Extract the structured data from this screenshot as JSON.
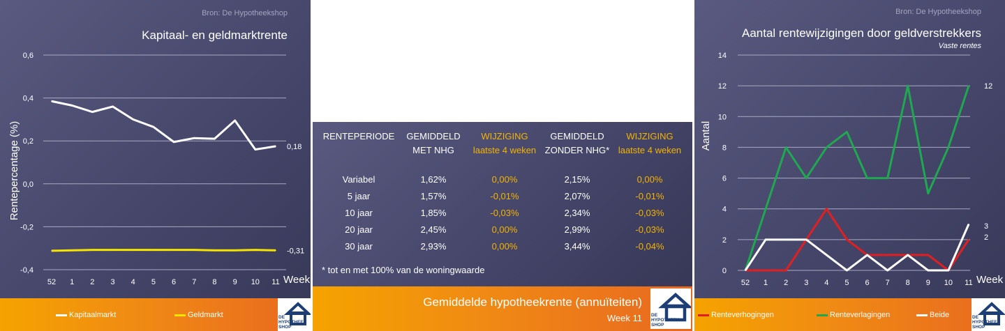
{
  "colors": {
    "panel_bg": "#45466a",
    "orange": "#f08a14",
    "yellow": "#f5e400",
    "white": "#ffffff",
    "red": "#e02020",
    "green": "#1fa84f",
    "highlight": "#f5b400"
  },
  "left_chart": {
    "source": "Bron: De Hypotheekshop",
    "legend": [
      "Kapitaalmarkt",
      "Geldmarkt"
    ]
  },
  "middle": {
    "headers": [
      {
        "line1": "RENTEPERIODE",
        "line2": "",
        "highlight": false
      },
      {
        "line1": "GEMIDDELD",
        "line2": "MET NHG",
        "highlight": false
      },
      {
        "line1": "WIJZIGING",
        "line2": "laatste 4 weken",
        "highlight": true
      },
      {
        "line1": "GEMIDDELD",
        "line2": "ZONDER NHG*",
        "highlight": false
      },
      {
        "line1": "WIJZIGING",
        "line2": "laatste 4 weken",
        "highlight": true
      }
    ],
    "rows": [
      [
        "Variabel",
        "1,62%",
        "0,00%",
        "2,15%",
        "0,00%"
      ],
      [
        "5 jaar",
        "1,57%",
        "-0,01%",
        "2,07%",
        "-0,01%"
      ],
      [
        "10 jaar",
        "1,85%",
        "-0,03%",
        "2,34%",
        "-0,03%"
      ],
      [
        "20 jaar",
        "2,45%",
        "0,00%",
        "2,99%",
        "-0,03%"
      ],
      [
        "30 jaar",
        "2,93%",
        "0,00%",
        "3,44%",
        "-0,04%"
      ]
    ],
    "footnote": "* tot en met 100% van de woningwaarde",
    "footer_title": "Gemiddelde hypotheekrente (annuïteiten)",
    "footer_week": "Week 11"
  },
  "right_chart": {
    "source": "Bron: De Hypotheekshop"
  },
  "logo": {
    "lines": [
      "DE",
      "HYPOTHEEK",
      "SHOP"
    ]
  },
  "chart_data": [
    {
      "type": "line",
      "title": "Kapitaal- en geldmarktrente",
      "xlabel": "Week",
      "ylabel": "Rentepercentage (%)",
      "categories": [
        "52",
        "1",
        "2",
        "3",
        "4",
        "5",
        "6",
        "7",
        "8",
        "9",
        "10",
        "11"
      ],
      "ylim": [
        -0.4,
        0.6
      ],
      "yticks": [
        "-0,4",
        "-0,2",
        "0,0",
        "0,2",
        "0,4",
        "0,6"
      ],
      "grid": true,
      "legend_position": "bottom",
      "series": [
        {
          "name": "Kapitaalmarkt",
          "color": "#ffffff",
          "values": [
            0.385,
            0.365,
            0.335,
            0.36,
            0.3,
            0.265,
            0.195,
            0.213,
            0.21,
            0.295,
            0.16,
            0.175
          ],
          "end_label": "0,18"
        },
        {
          "name": "Geldmarkt",
          "color": "#f5e400",
          "values": [
            -0.312,
            -0.31,
            -0.308,
            -0.308,
            -0.308,
            -0.308,
            -0.308,
            -0.308,
            -0.31,
            -0.31,
            -0.308,
            -0.31
          ],
          "end_label": "-0,31"
        }
      ]
    },
    {
      "type": "line",
      "title": "Aantal rentewijzigingen door geldverstrekkers",
      "subtitle": "Vaste rentes",
      "xlabel": "Week",
      "ylabel": "Aantal",
      "categories": [
        "52",
        "1",
        "2",
        "3",
        "4",
        "5",
        "6",
        "7",
        "8",
        "9",
        "10",
        "11"
      ],
      "ylim": [
        0,
        14
      ],
      "yticks": [
        "0",
        "2",
        "4",
        "6",
        "8",
        "10",
        "12",
        "14"
      ],
      "grid": true,
      "legend_position": "bottom",
      "series": [
        {
          "name": "Renteverhogingen",
          "color": "#e02020",
          "values": [
            0,
            0,
            0,
            2,
            4,
            2,
            1,
            1,
            1,
            1,
            0,
            2
          ],
          "end_label": "2"
        },
        {
          "name": "Renteverlagingen",
          "color": "#1fa84f",
          "values": [
            0,
            4,
            8,
            6,
            8,
            9,
            6,
            6,
            12,
            5,
            8,
            12
          ],
          "end_label": "12"
        },
        {
          "name": "Beide",
          "color": "#ffffff",
          "values": [
            0,
            2,
            2,
            2,
            1,
            0,
            1,
            0,
            1,
            0,
            0,
            3
          ],
          "end_label": "3"
        }
      ]
    }
  ]
}
